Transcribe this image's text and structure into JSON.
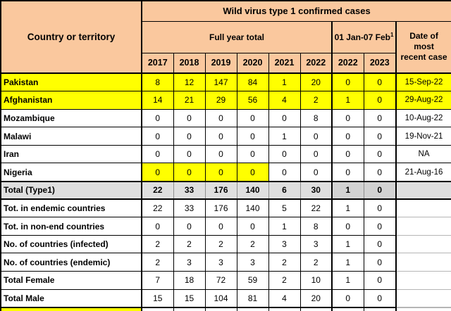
{
  "table": {
    "title": "Wild virus type 1 confirmed cases",
    "corner_label": "Country or territory",
    "groups": {
      "full_year": "Full year total",
      "jan_feb": "01 Jan-07 Feb",
      "jan_feb_footnote": "1"
    },
    "date_column_header": "Date of most recent case",
    "year_headers": [
      "2017",
      "2018",
      "2019",
      "2020",
      "2021",
      "2022"
    ],
    "jan_feb_year_headers": [
      "2022",
      "2023"
    ],
    "colors": {
      "header_bg": "#FAC89E",
      "highlight_yellow": "#FFFF00",
      "total_row_bg": "#DFDFDF",
      "total_row_janfeb_bg": "#D2D2D2",
      "faint_line": "#B5B5B5",
      "border": "#000000"
    },
    "rows": [
      {
        "label": "Pakistan",
        "values": [
          "8",
          "12",
          "147",
          "84",
          "1",
          "20",
          "0",
          "0"
        ],
        "date": "15-Sep-22",
        "bg": "yellow",
        "bold": false,
        "yellow_cells": []
      },
      {
        "label": "Afghanistan",
        "values": [
          "14",
          "21",
          "29",
          "56",
          "4",
          "2",
          "1",
          "0"
        ],
        "date": "29-Aug-22",
        "bg": "yellow",
        "bold": false,
        "yellow_cells": []
      },
      {
        "label": "Mozambique",
        "values": [
          "0",
          "0",
          "0",
          "0",
          "0",
          "8",
          "0",
          "0"
        ],
        "date": "10-Aug-22",
        "bg": "white",
        "bold": false,
        "yellow_cells": []
      },
      {
        "label": "Malawi",
        "values": [
          "0",
          "0",
          "0",
          "0",
          "1",
          "0",
          "0",
          "0"
        ],
        "date": "19-Nov-21",
        "bg": "white",
        "bold": false,
        "yellow_cells": []
      },
      {
        "label": "Iran",
        "values": [
          "0",
          "0",
          "0",
          "0",
          "0",
          "0",
          "0",
          "0"
        ],
        "date": "NA",
        "bg": "white",
        "bold": false,
        "yellow_cells": []
      },
      {
        "label": "Nigeria",
        "values": [
          "0",
          "0",
          "0",
          "0",
          "0",
          "0",
          "0",
          "0"
        ],
        "date": "21-Aug-16",
        "bg": "white",
        "bold": false,
        "yellow_cells": [
          0,
          1,
          2,
          3
        ]
      },
      {
        "label": "Total (Type1)",
        "values": [
          "22",
          "33",
          "176",
          "140",
          "6",
          "30",
          "1",
          "0"
        ],
        "date": "",
        "bg": "gray",
        "bold": true,
        "yellow_cells": []
      },
      {
        "label": "Tot. in endemic countries",
        "values": [
          "22",
          "33",
          "176",
          "140",
          "5",
          "22",
          "1",
          "0"
        ],
        "date": "",
        "bg": "white",
        "bold": false,
        "yellow_cells": []
      },
      {
        "label": "Tot. in non-end countries",
        "values": [
          "0",
          "0",
          "0",
          "0",
          "1",
          "8",
          "0",
          "0"
        ],
        "date": "",
        "bg": "white",
        "bold": false,
        "yellow_cells": []
      },
      {
        "label": "No. of countries (infected)",
        "values": [
          "2",
          "2",
          "2",
          "2",
          "3",
          "3",
          "1",
          "0"
        ],
        "date": "",
        "bg": "white",
        "bold": false,
        "yellow_cells": []
      },
      {
        "label": "No. of countries (endemic)",
        "values": [
          "2",
          "3",
          "3",
          "3",
          "2",
          "2",
          "1",
          "0"
        ],
        "date": "",
        "bg": "white",
        "bold": false,
        "yellow_cells": []
      },
      {
        "label": "Total Female",
        "values": [
          "7",
          "18",
          "72",
          "59",
          "2",
          "10",
          "1",
          "0"
        ],
        "date": "",
        "bg": "white",
        "bold": false,
        "yellow_cells": []
      },
      {
        "label": "Total Male",
        "values": [
          "15",
          "15",
          "104",
          "81",
          "4",
          "20",
          "0",
          "0"
        ],
        "date": "",
        "bg": "white",
        "bold": false,
        "yellow_cells": []
      }
    ]
  }
}
